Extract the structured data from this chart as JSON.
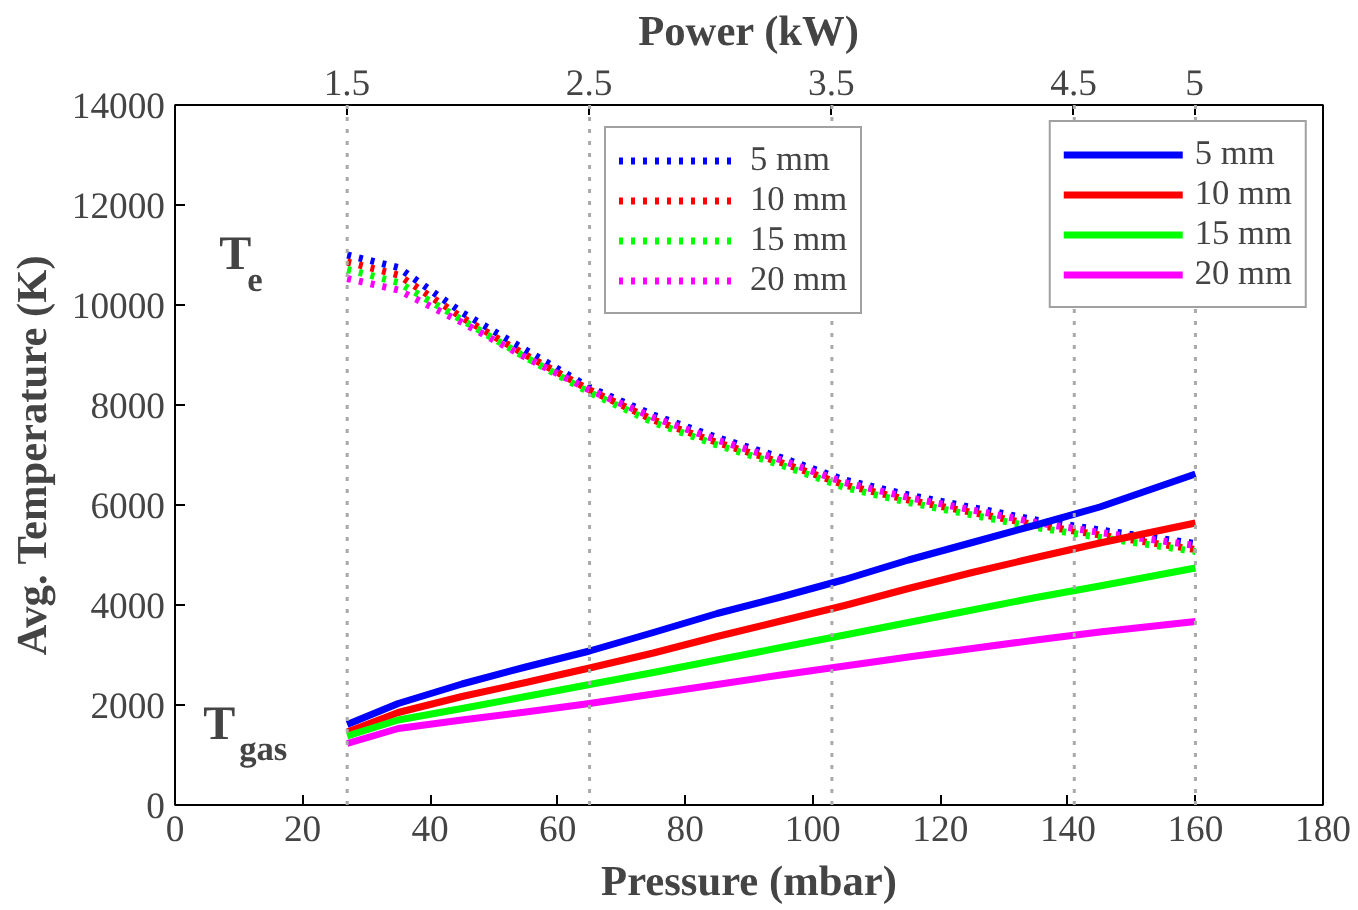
{
  "chart_data": {
    "type": "line",
    "xlabel": "Pressure (mbar)",
    "ylabel": "Avg. Temperature (K)",
    "x2label": "Power (kW)",
    "xlim": [
      0,
      180
    ],
    "xticks": [
      0,
      20,
      40,
      60,
      80,
      100,
      120,
      140,
      160,
      180
    ],
    "ylim": [
      0,
      14000
    ],
    "yticks": [
      0,
      2000,
      4000,
      6000,
      8000,
      10000,
      12000,
      14000
    ],
    "x2lim": [
      0.79,
      5.53
    ],
    "x2ticks": [
      1.5,
      2.5,
      3.5,
      4.5,
      5
    ],
    "grid": false,
    "legend": "top right",
    "ref_lines": [
      {
        "axis": "x",
        "value": 27,
        "color": "#aaaaaa",
        "line_style": "dotted"
      },
      {
        "axis": "x",
        "value": 65,
        "color": "#aaaaaa",
        "line_style": "dotted"
      },
      {
        "axis": "x",
        "value": 103,
        "color": "#aaaaaa",
        "line_style": "dotted"
      },
      {
        "axis": "x",
        "value": 141,
        "color": "#aaaaaa",
        "line_style": "dotted"
      },
      {
        "axis": "x",
        "value": 160,
        "color": "#aaaaaa",
        "line_style": "dotted"
      }
    ],
    "annotations": [
      "T$_{e}$",
      "T$_{gas}$"
    ],
    "x": [
      27,
      35,
      45,
      55,
      65,
      75,
      85,
      95,
      105,
      115,
      125,
      135,
      145,
      160
    ],
    "series": [
      {
        "name": "5 mm",
        "color": "#0000ff",
        "line_style": "dotted",
        "values": [
          11000,
          10750,
          9850,
          9100,
          8350,
          7800,
          7350,
          6950,
          6500,
          6200,
          5950,
          5700,
          5500,
          5230
        ]
      },
      {
        "name": "10 mm",
        "color": "#ff0000",
        "line_style": "dotted",
        "values": [
          10860,
          10600,
          9750,
          9000,
          8300,
          7700,
          7250,
          6850,
          6400,
          6100,
          5850,
          5600,
          5400,
          5110
        ]
      },
      {
        "name": "15 mm",
        "color": "#00ff00",
        "line_style": "dotted",
        "values": [
          10710,
          10450,
          9700,
          8950,
          8250,
          7650,
          7200,
          6800,
          6350,
          6050,
          5800,
          5550,
          5350,
          5070
        ]
      },
      {
        "name": "20 mm",
        "color": "#ff00ff",
        "line_style": "dotted",
        "values": [
          10530,
          10300,
          9650,
          8950,
          8300,
          7750,
          7300,
          6900,
          6450,
          6150,
          5900,
          5650,
          5450,
          5190
        ]
      },
      {
        "name": "5 mm",
        "color": "#0000ff",
        "line_style": "solid",
        "values": [
          1610,
          2030,
          2420,
          2760,
          3080,
          3450,
          3830,
          4160,
          4510,
          4900,
          5250,
          5600,
          5960,
          6620
        ]
      },
      {
        "name": "10 mm",
        "color": "#ff0000",
        "line_style": "solid",
        "values": [
          1460,
          1850,
          2170,
          2450,
          2740,
          3040,
          3370,
          3680,
          3990,
          4330,
          4650,
          4950,
          5240,
          5640
        ]
      },
      {
        "name": "15 mm",
        "color": "#00ff00",
        "line_style": "solid",
        "values": [
          1380,
          1700,
          1930,
          2170,
          2410,
          2650,
          2900,
          3150,
          3400,
          3650,
          3900,
          4150,
          4380,
          4740
        ]
      },
      {
        "name": "20 mm",
        "color": "#ff00ff",
        "line_style": "solid",
        "values": [
          1230,
          1530,
          1700,
          1860,
          2030,
          2220,
          2410,
          2600,
          2780,
          2960,
          3130,
          3300,
          3460,
          3670
        ]
      }
    ]
  }
}
